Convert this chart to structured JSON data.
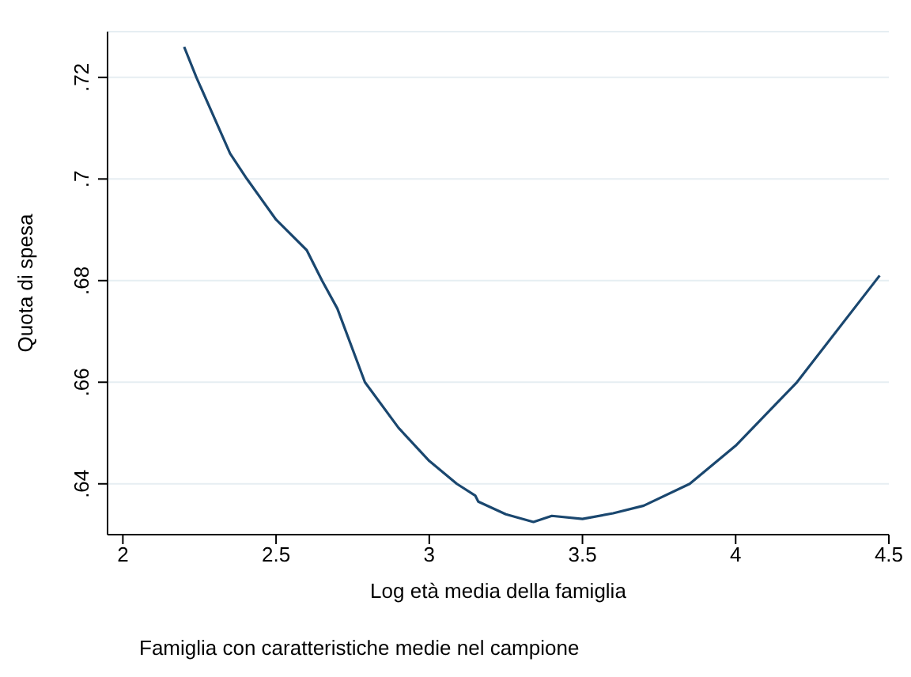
{
  "chart_data": {
    "type": "line",
    "xlabel": "Log età media della famiglia",
    "ylabel": "Quota di spesa",
    "annotations": [
      "Famiglia con caratteristiche medie nel campione"
    ],
    "x": [
      2.2,
      2.24,
      2.35,
      2.405,
      2.5,
      2.6,
      2.65,
      2.7,
      2.79,
      2.9,
      3.0,
      3.09,
      3.15,
      3.16,
      3.25,
      3.34,
      3.4,
      3.5,
      3.6,
      3.7,
      3.85,
      4.0,
      4.2,
      4.47
    ],
    "series": [
      {
        "color": "#1a476f",
        "values": [
          0.726,
          0.72,
          0.705,
          0.7,
          0.692,
          0.686,
          0.68,
          0.6745,
          0.66,
          0.651,
          0.6445,
          0.64,
          0.6377,
          0.6365,
          0.634,
          0.6325,
          0.6337,
          0.6331,
          0.6342,
          0.6357,
          0.64,
          0.6475,
          0.66,
          0.681
        ]
      }
    ],
    "xlim": [
      1.95,
      4.5
    ],
    "xticks": [
      2,
      {
        "value": 2.5,
        "label": "2.5"
      },
      3,
      {
        "value": 3.5,
        "label": "3.5"
      },
      4,
      {
        "value": 4.5,
        "label": "4.5"
      }
    ],
    "ylim": [
      0.63,
      0.729
    ],
    "yticks": [
      {
        "value": 0.64,
        "label": ".64"
      },
      {
        "value": 0.66,
        "label": ".66"
      },
      {
        "value": 0.68,
        "label": ".68"
      },
      {
        "value": 0.7,
        "label": ".7"
      },
      {
        "value": 0.72,
        "label": ".72"
      }
    ],
    "grid": "y",
    "marker": "none",
    "line_style": "solid"
  }
}
